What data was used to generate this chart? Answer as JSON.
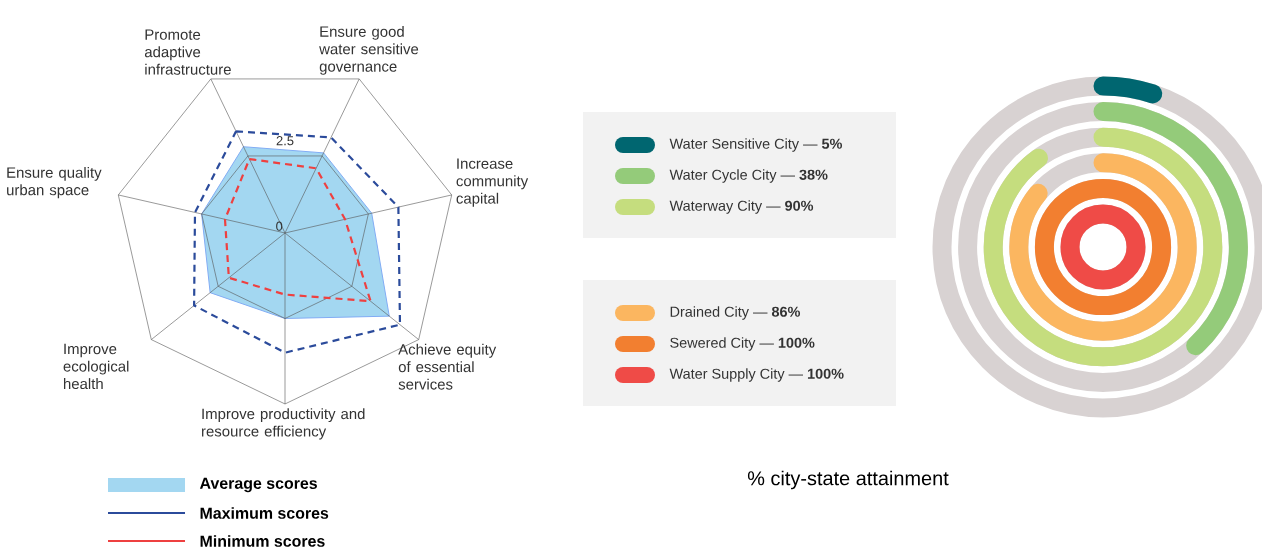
{
  "chart_data": [
    {
      "type": "radar",
      "categories": [
        "Promote adaptive infrastructure",
        "Ensure good water sensitive governance",
        "Increase community capital",
        "Achieve equity of essential services",
        "Improve productivity and resource efficiency",
        "Improve ecological health",
        "Ensure quality urban space"
      ],
      "series": [
        {
          "name": "Average scores",
          "type": "area",
          "color": "#a3d7f1",
          "values": [
            2.8,
            2.6,
            2.6,
            3.9,
            2.5,
            2.8,
            2.5
          ]
        },
        {
          "name": "Maximum scores",
          "color": "#2b4b9b",
          "line_style": "dashed",
          "values": [
            3.3,
            3.1,
            3.4,
            4.3,
            3.5,
            3.4,
            2.7
          ]
        },
        {
          "name": "Minimum scores",
          "color": "#ee4040",
          "line_style": "dashed",
          "values": [
            2.4,
            2.1,
            1.8,
            3.2,
            1.8,
            2.1,
            1.8
          ]
        }
      ],
      "ylim": [
        0,
        5
      ],
      "yticks": [
        0,
        2.5
      ],
      "grid": true,
      "legend": "bottom left",
      "marker": "none"
    },
    {
      "type": "other",
      "title": "% city-state attainment",
      "categories": [
        "Water Sensitive City",
        "Water Cycle City",
        "Waterway City",
        "Drained City",
        "Sewered City",
        "Water Supply City"
      ],
      "values": [
        5,
        38,
        90,
        86,
        100,
        100
      ],
      "value_labels": [
        "— **5%**",
        "— **38%**",
        "— **90%**",
        "— **86%**",
        "— **100%**",
        "— **100%**"
      ],
      "colors": [
        "#006670",
        "#94cb7a",
        "#c5dd7e",
        "#fbb660",
        "#f27f30",
        "#ef4b47"
      ]
    }
  ]
}
